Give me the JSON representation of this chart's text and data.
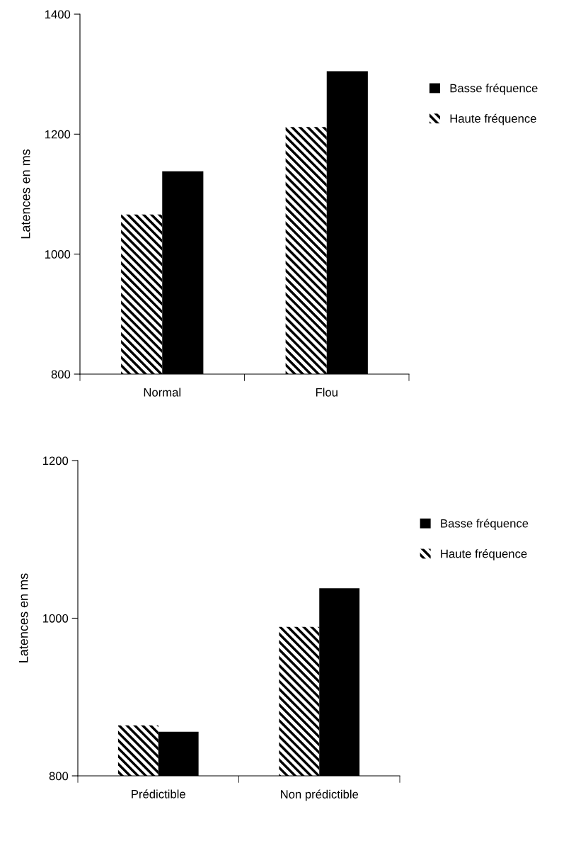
{
  "chart_data": [
    {
      "type": "bar",
      "categories": [
        "Normal",
        "Flou"
      ],
      "ylabel": "Latences en ms",
      "ylim": [
        800,
        1400
      ],
      "yticks": [
        800,
        1000,
        1200,
        1400
      ],
      "legend": "right",
      "grid": false,
      "series": [
        {
          "name": "Haute fréquence",
          "color": "#000000",
          "values": [
            1066,
            1212
          ]
        },
        {
          "name": "Basse fréquence",
          "color": "#000000",
          "values": [
            1138,
            1305
          ]
        }
      ]
    },
    {
      "type": "bar",
      "categories": [
        "Prédictible",
        "Non prédictible"
      ],
      "ylabel": "Latences en ms",
      "ylim": [
        800,
        1200
      ],
      "yticks": [
        800,
        1000,
        1200
      ],
      "legend": "right",
      "grid": false,
      "series": [
        {
          "name": "Haute fréquence",
          "color": "#000000",
          "values": [
            864,
            989
          ]
        },
        {
          "name": "Basse fréquence",
          "color": "#000000",
          "values": [
            856,
            1038
          ]
        }
      ]
    }
  ]
}
